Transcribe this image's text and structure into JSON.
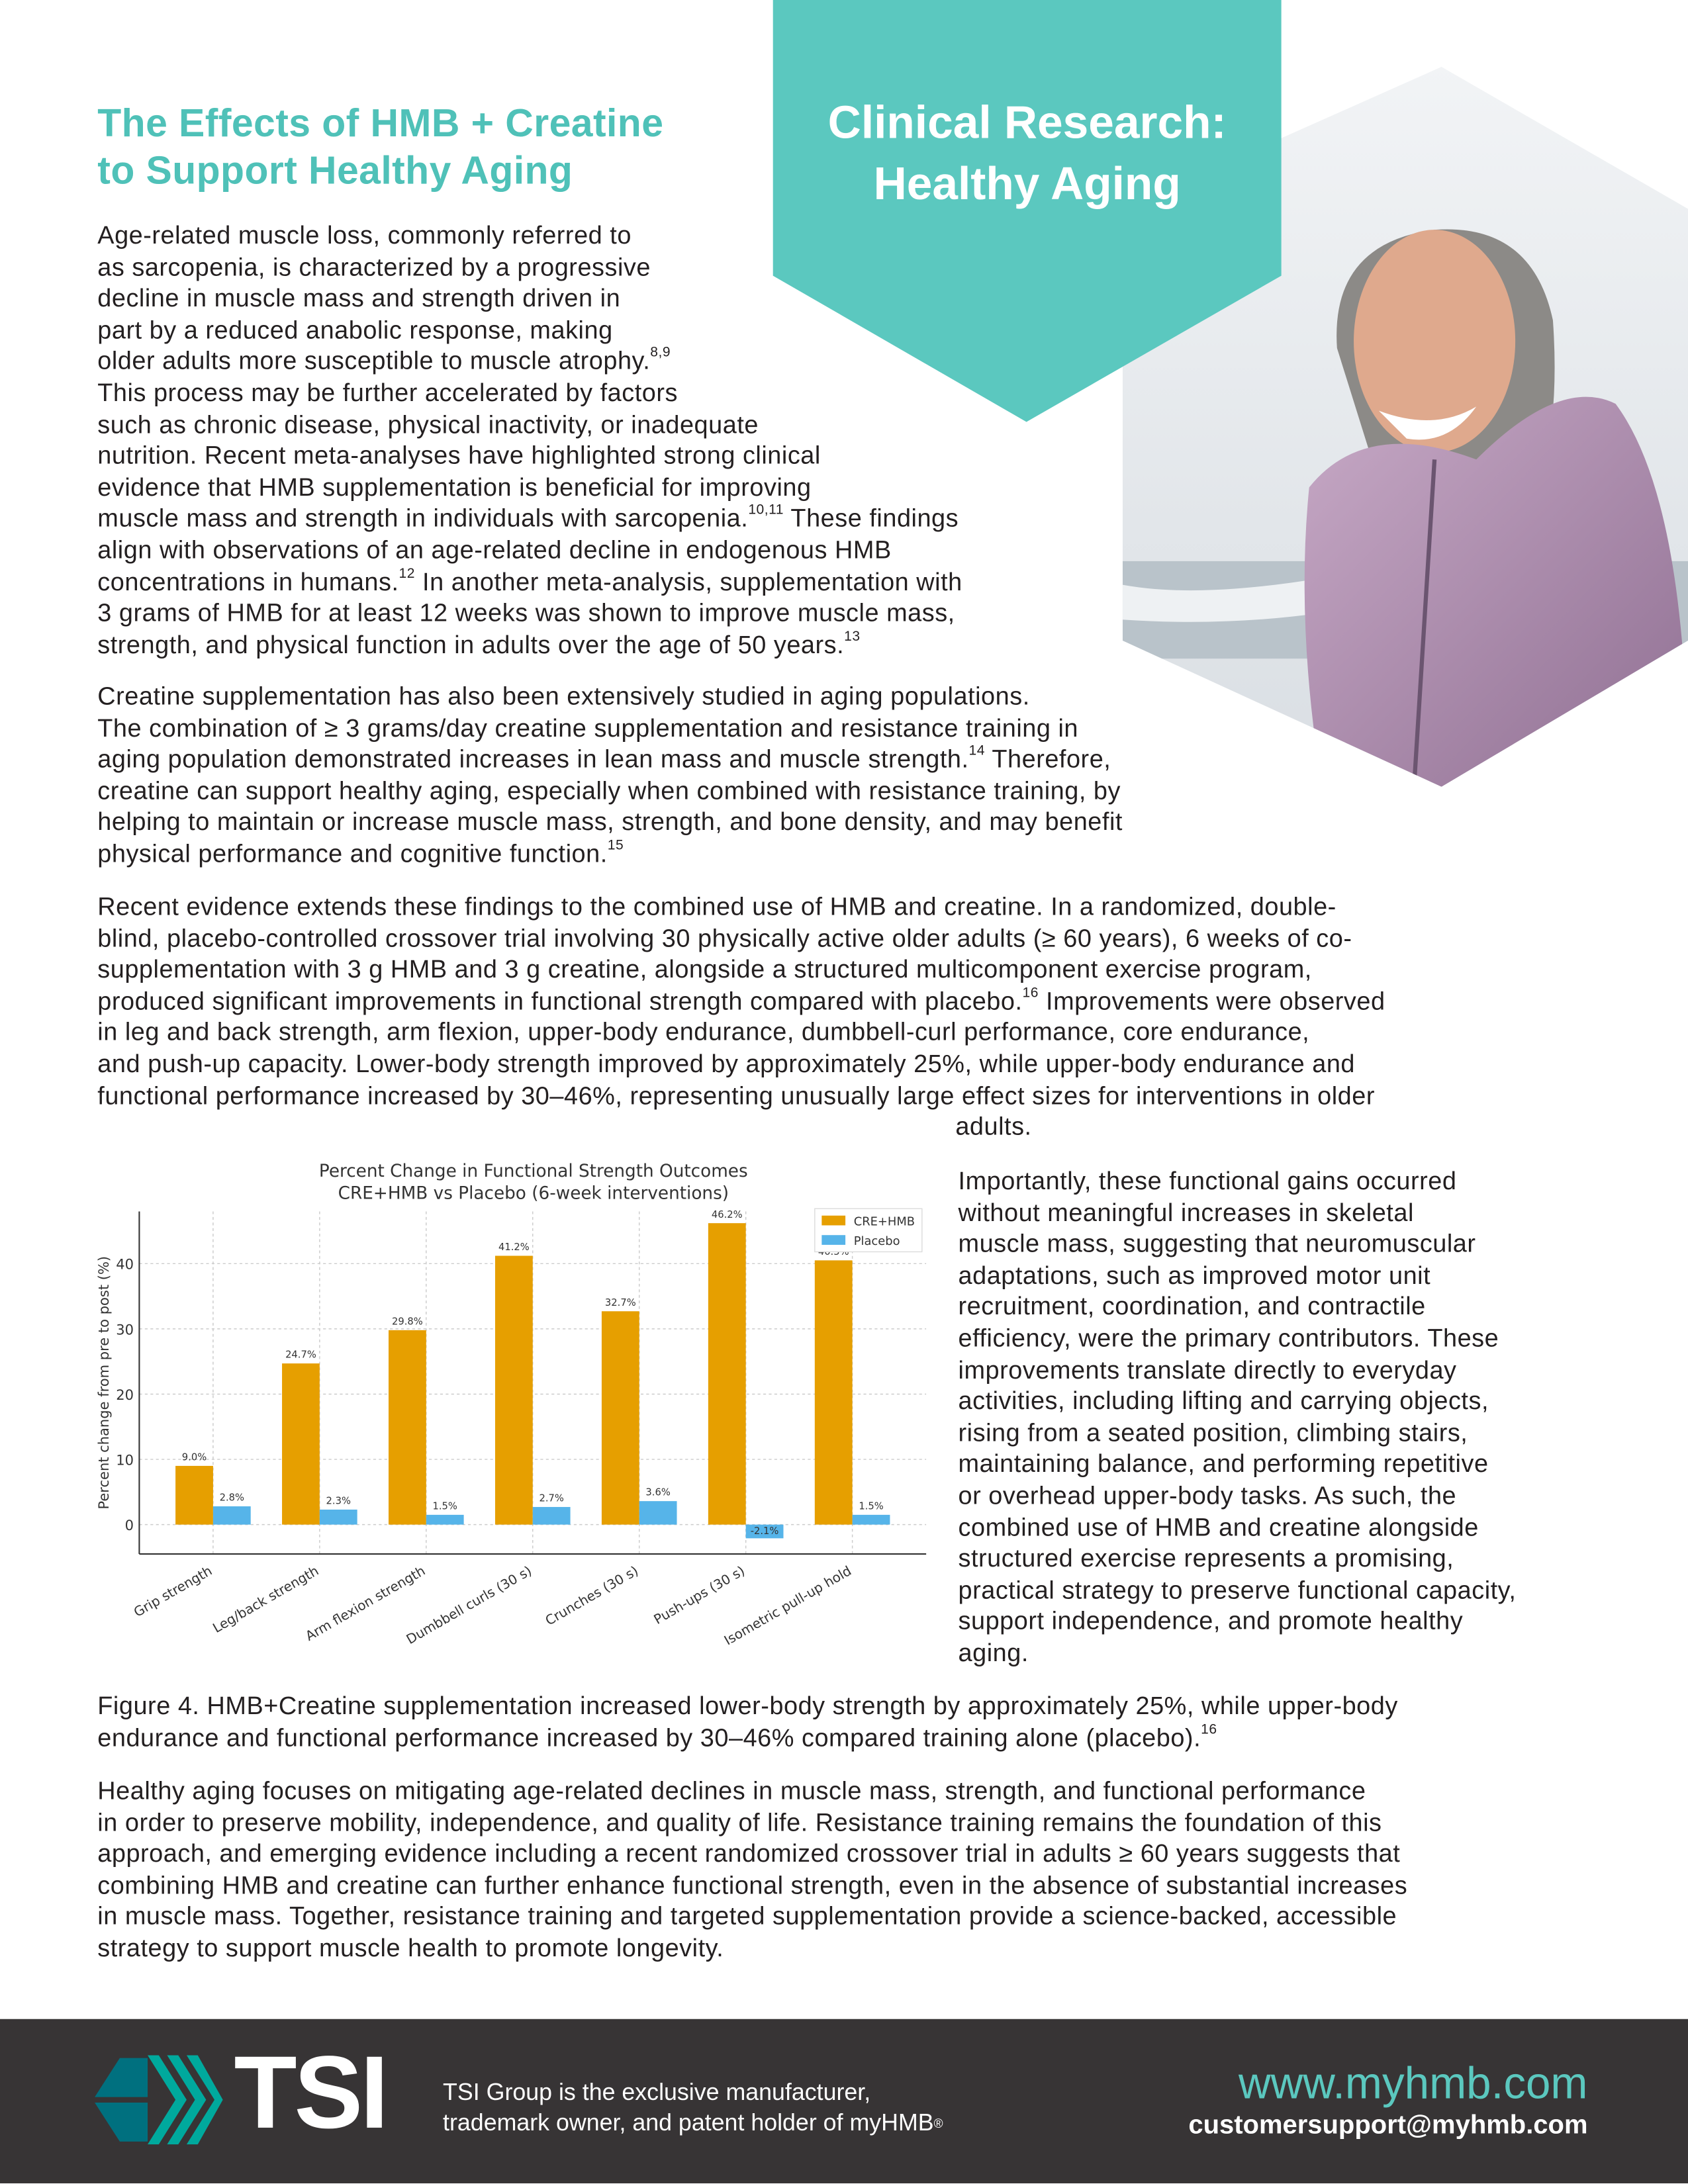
{
  "banner": {
    "title_lines": [
      "Clinical Research:",
      "Healthy Aging"
    ],
    "color": "#5bc8bf"
  },
  "heading": {
    "lines": [
      "The Effects of HMB + Creatine",
      "to Support Healthy Aging"
    ],
    "color": "#4fc1b8"
  },
  "paragraphs": {
    "p1": [
      [
        "Age-related muscle loss, commonly referred to"
      ],
      [
        "as sarcopenia, is characterized by a progressive"
      ],
      [
        "decline in muscle mass and strength driven in"
      ],
      [
        "part by a reduced anabolic response, making"
      ],
      [
        "older adults more susceptible to muscle atrophy.",
        {
          "sup": "8,9"
        }
      ],
      [
        "This process may be further accelerated by factors"
      ],
      [
        "such as chronic disease, physical inactivity, or inadequate"
      ],
      [
        "nutrition. Recent meta-analyses have highlighted strong clinical"
      ],
      [
        "evidence that HMB supplementation is beneficial for improving"
      ],
      [
        "muscle mass and strength in individuals with sarcopenia.",
        {
          "sup": "10,11"
        },
        " These findings"
      ],
      [
        "align with observations of an age-related decline in endogenous HMB"
      ],
      [
        "concentrations in humans.",
        {
          "sup": "12"
        },
        " In another meta-analysis, supplementation with"
      ],
      [
        "3 grams of HMB for at least 12 weeks was shown to improve muscle mass,"
      ],
      [
        "strength, and physical function in adults over the age of 50 years.",
        {
          "sup": "13"
        }
      ]
    ],
    "p2": [
      [
        "Creatine supplementation has also been extensively studied in aging populations."
      ],
      [
        "The combination of ≥ 3 grams/day creatine supplementation and resistance training in"
      ],
      [
        "aging population demonstrated increases in lean mass and muscle strength.",
        {
          "sup": "14"
        },
        " Therefore,"
      ],
      [
        "creatine can support healthy aging, especially when combined with resistance training, by"
      ],
      [
        "helping to maintain or increase muscle mass, strength, and bone density, and may benefit"
      ],
      [
        "physical performance and cognitive function.",
        {
          "sup": "15"
        }
      ]
    ],
    "p3": [
      [
        "Recent evidence extends these findings to the combined use of HMB and creatine. In a randomized, double-"
      ],
      [
        "blind, placebo-controlled crossover trial involving 30 physically active older adults (≥ 60 years), 6 weeks of co-"
      ],
      [
        "supplementation with 3 g HMB and 3 g creatine, alongside a structured multicomponent exercise program,"
      ],
      [
        "produced significant improvements in functional strength compared with placebo.",
        {
          "sup": "16"
        },
        " Improvements were observed"
      ],
      [
        "in leg and back strength, arm flexion, upper-body endurance, dumbbell-curl performance, core endurance,"
      ],
      [
        "and push-up capacity. Lower-body strength improved by approximately 25%, while upper-body endurance and"
      ],
      [
        "functional performance increased by 30–46%, representing unusually large effect sizes for interventions in older"
      ]
    ],
    "p3_tail": "adults.",
    "p_right": [
      [
        "Importantly, these functional gains occurred"
      ],
      [
        "without meaningful increases in skeletal"
      ],
      [
        "muscle mass, suggesting that neuromuscular"
      ],
      [
        "adaptations, such as improved motor unit"
      ],
      [
        "recruitment, coordination, and contractile"
      ],
      [
        "efficiency, were the primary contributors. These"
      ],
      [
        "improvements translate directly to everyday"
      ],
      [
        "activities, including lifting and carrying objects,"
      ],
      [
        "rising from a seated position, climbing stairs,"
      ],
      [
        "maintaining balance, and performing repetitive"
      ],
      [
        "or overhead upper-body tasks. As such, the"
      ],
      [
        "combined use of HMB and creatine alongside"
      ],
      [
        "structured exercise represents a promising,"
      ],
      [
        "practical strategy to preserve functional capacity,"
      ],
      [
        "support independence, and promote healthy"
      ],
      [
        "aging."
      ]
    ],
    "caption": [
      [
        "Figure 4. HMB+Creatine supplementation increased lower-body strength by approximately 25%, while upper-body"
      ],
      [
        "endurance and functional performance increased by 30–46% compared training alone (placebo).",
        {
          "sup": "16"
        }
      ]
    ],
    "p4": [
      [
        "Healthy aging focuses on mitigating age-related declines in muscle mass, strength, and functional performance"
      ],
      [
        "in order to preserve mobility, independence, and quality of life. Resistance training remains the foundation of this"
      ],
      [
        "approach, and emerging evidence including a recent randomized crossover trial in adults ≥ 60 years suggests that"
      ],
      [
        "combining HMB and creatine can further enhance functional strength, even in the absence of substantial increases"
      ],
      [
        "in muscle mass. Together, resistance training and targeted supplementation provide a science-backed, accessible"
      ],
      [
        "strategy to support muscle health to promote longevity."
      ]
    ]
  },
  "chart_data": {
    "type": "bar",
    "title": "Percent Change in Functional Strength Outcomes",
    "subtitle": "CRE+HMB vs Placebo (6-week interventions)",
    "xlabel": "",
    "ylabel": "Percent change from pre to post (%)",
    "categories": [
      "Grip strength",
      "Leg/back strength",
      "Arm flexion strength",
      "Dumbbell curls (30 s)",
      "Crunches (30 s)",
      "Push-ups (30 s)",
      "Isometric pull-up hold"
    ],
    "series": [
      {
        "name": "CRE+HMB",
        "color": "#e69f00",
        "values": [
          9.0,
          24.7,
          29.8,
          41.2,
          32.7,
          46.2,
          40.5
        ],
        "labels": [
          "9.0%",
          "24.7%",
          "29.8%",
          "41.2%",
          "32.7%",
          "46.2%",
          "40.5%"
        ]
      },
      {
        "name": "Placebo",
        "color": "#56b4e9",
        "values": [
          2.8,
          2.3,
          1.5,
          2.7,
          3.6,
          -2.1,
          1.5
        ],
        "labels": [
          "2.8%",
          "2.3%",
          "1.5%",
          "2.7%",
          "3.6%",
          "-2.1%",
          "1.5%"
        ]
      }
    ],
    "yticks": [
      0,
      10,
      20,
      30,
      40
    ],
    "ylim": [
      -4.5,
      48
    ],
    "grid": true,
    "legend": "top-right"
  },
  "footer": {
    "logo_text": "TSI",
    "tagline_lines": [
      "TSI Group is the exclusive manufacturer,",
      "trademark owner, and patent holder of myHMB"
    ],
    "tagline_mark": "®",
    "website": "www.myhmb.com",
    "email": "customersupport@myhmb.com",
    "colors": {
      "background": "#373435",
      "accent": "#5bc8bf",
      "logo_dark": "#00707f",
      "logo_light": "#00a99d"
    }
  }
}
